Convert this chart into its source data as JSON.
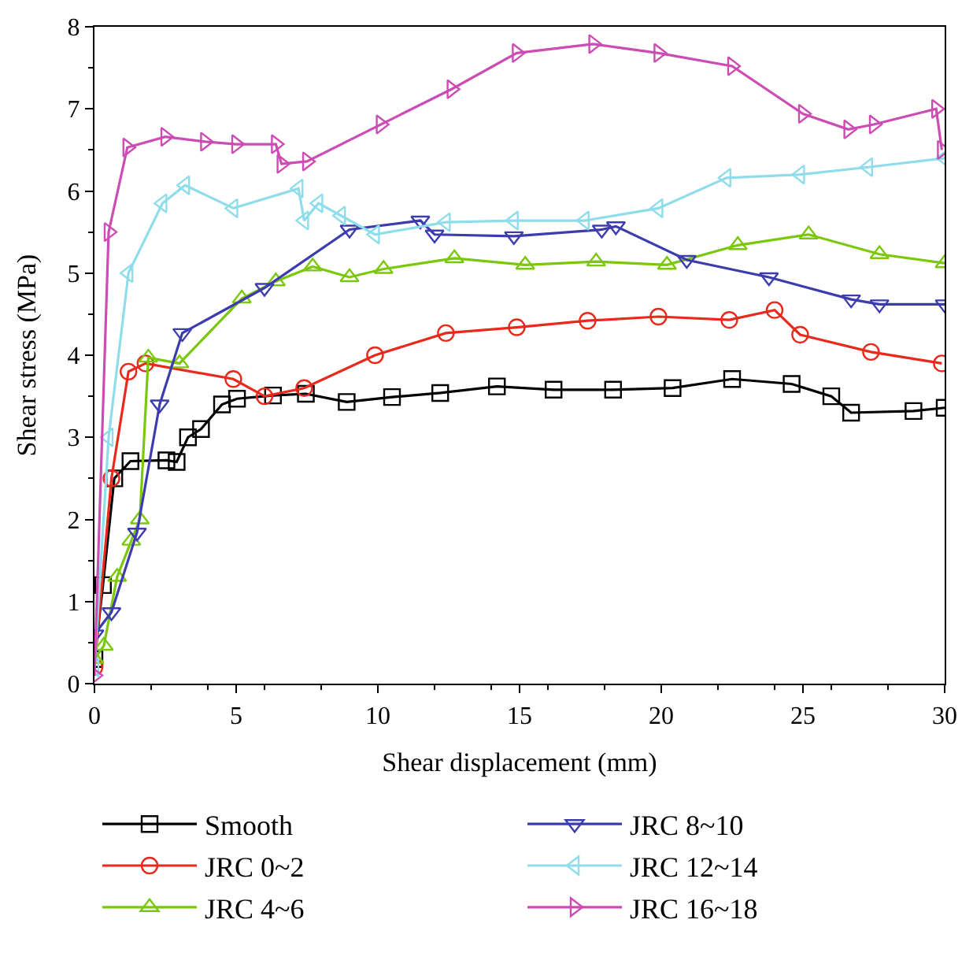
{
  "chart_data": {
    "type": "line",
    "xlabel": "Shear displacement (mm)",
    "ylabel": "Shear stress (MPa)",
    "xlim": [
      0,
      30
    ],
    "ylim": [
      0,
      8
    ],
    "xticks": [
      0,
      5,
      10,
      15,
      20,
      25,
      30
    ],
    "yticks": [
      0,
      1,
      2,
      3,
      4,
      5,
      6,
      7,
      8
    ],
    "legend": "bottom",
    "series": [
      {
        "name": "Smooth",
        "color": "#000000",
        "marker": "square",
        "x": [
          0,
          0.3,
          0.7,
          1.27,
          2.54,
          2.9,
          3.3,
          3.76,
          4.5,
          5.03,
          6.3,
          7.46,
          8.9,
          10.5,
          12.2,
          14.2,
          16.2,
          18.3,
          20.4,
          22.5,
          24.6,
          26.0,
          26.7,
          28.9,
          30
        ],
        "values": [
          0.3,
          1.2,
          2.5,
          2.71,
          2.72,
          2.7,
          3.0,
          3.1,
          3.4,
          3.47,
          3.51,
          3.53,
          3.43,
          3.49,
          3.54,
          3.62,
          3.58,
          3.58,
          3.6,
          3.71,
          3.65,
          3.5,
          3.3,
          3.32,
          3.36
        ]
      },
      {
        "name": "JRC 0~2",
        "color": "#e8291c",
        "marker": "circle",
        "x": [
          0,
          0.6,
          1.2,
          1.8,
          4.9,
          6.0,
          7.4,
          9.9,
          12.4,
          14.9,
          17.4,
          19.9,
          22.4,
          24.0,
          24.9,
          27.4,
          29.9
        ],
        "values": [
          0.2,
          2.5,
          3.8,
          3.9,
          3.71,
          3.5,
          3.6,
          4.0,
          4.27,
          4.34,
          4.42,
          4.47,
          4.43,
          4.55,
          4.25,
          4.04,
          3.9
        ]
      },
      {
        "name": "JRC 4~6",
        "color": "#7ac70c",
        "marker": "triangle-up",
        "x": [
          0,
          0.33,
          0.8,
          1.3,
          1.6,
          1.9,
          3.0,
          5.2,
          6.4,
          7.7,
          9.0,
          10.2,
          12.7,
          15.2,
          17.7,
          20.2,
          22.7,
          25.2,
          27.7,
          30
        ],
        "values": [
          0.3,
          0.46,
          1.3,
          1.74,
          2.0,
          3.97,
          3.9,
          4.69,
          4.9,
          5.08,
          4.95,
          5.05,
          5.18,
          5.1,
          5.14,
          5.1,
          5.34,
          5.47,
          5.23,
          5.12
        ]
      },
      {
        "name": "JRC 8~10",
        "color": "#3c3cae",
        "marker": "triangle-down",
        "x": [
          0,
          0.6,
          1.5,
          2.3,
          3.1,
          6.0,
          9.0,
          11.5,
          12.0,
          14.8,
          17.9,
          18.4,
          20.9,
          23.8,
          26.7,
          27.7,
          30
        ],
        "values": [
          0.6,
          0.87,
          1.84,
          3.4,
          4.27,
          4.82,
          5.53,
          5.64,
          5.47,
          5.45,
          5.53,
          5.57,
          5.16,
          4.95,
          4.68,
          4.62,
          4.62
        ]
      },
      {
        "name": "JRC 12~14",
        "color": "#8fdcea",
        "marker": "triangle-left",
        "x": [
          0,
          0.5,
          1.2,
          2.4,
          3.2,
          4.9,
          7.2,
          7.4,
          7.9,
          8.7,
          9.9,
          12.4,
          14.8,
          17.3,
          19.9,
          22.3,
          24.9,
          27.3,
          30
        ],
        "values": [
          0.2,
          3.0,
          5.0,
          5.85,
          6.07,
          5.79,
          6.03,
          5.64,
          5.85,
          5.7,
          5.47,
          5.62,
          5.64,
          5.64,
          5.79,
          6.16,
          6.2,
          6.29,
          6.4
        ]
      },
      {
        "name": "JRC 16~18",
        "color": "#cc4cb4",
        "marker": "triangle-right",
        "x": [
          0,
          0.5,
          1.16,
          2.5,
          3.9,
          5.0,
          6.4,
          6.6,
          7.5,
          10.1,
          12.6,
          14.9,
          17.6,
          19.9,
          22.5,
          25.0,
          26.6,
          27.5,
          29.7,
          29.9
        ],
        "values": [
          0.1,
          5.5,
          6.53,
          6.66,
          6.6,
          6.57,
          6.57,
          6.33,
          6.36,
          6.81,
          7.24,
          7.68,
          7.79,
          7.68,
          7.52,
          6.94,
          6.75,
          6.81,
          7.0,
          6.5
        ]
      }
    ]
  }
}
